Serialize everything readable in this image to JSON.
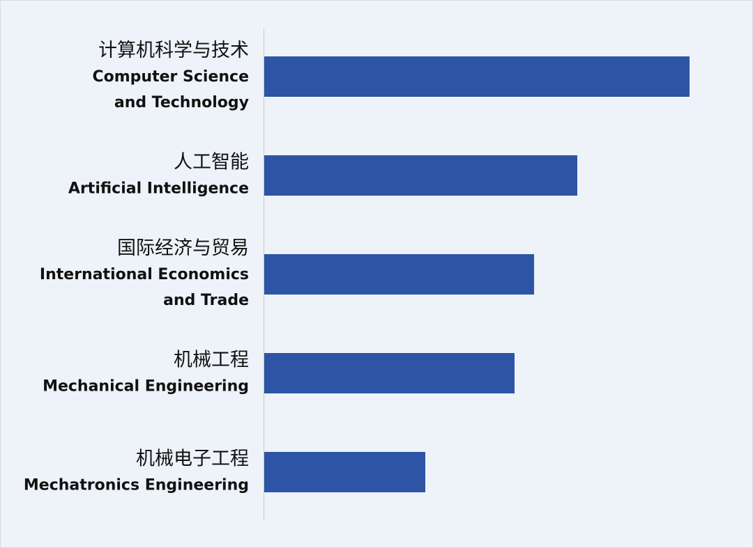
{
  "chart_data": {
    "type": "barh",
    "categories": [
      [
        "计算机科学与技术",
        "Computer Science",
        "and Technology"
      ],
      [
        "人工智能",
        "Artificial Intelligence"
      ],
      [
        "国际经济与贸易",
        "International Economics",
        "and Trade"
      ],
      [
        "机械工程",
        "Mechanical Engineering"
      ],
      [
        "机械电子工程",
        "Mechatronics Engineering"
      ]
    ],
    "values": [
      610,
      449,
      387,
      359,
      231
    ],
    "color": "#2e54a6"
  }
}
